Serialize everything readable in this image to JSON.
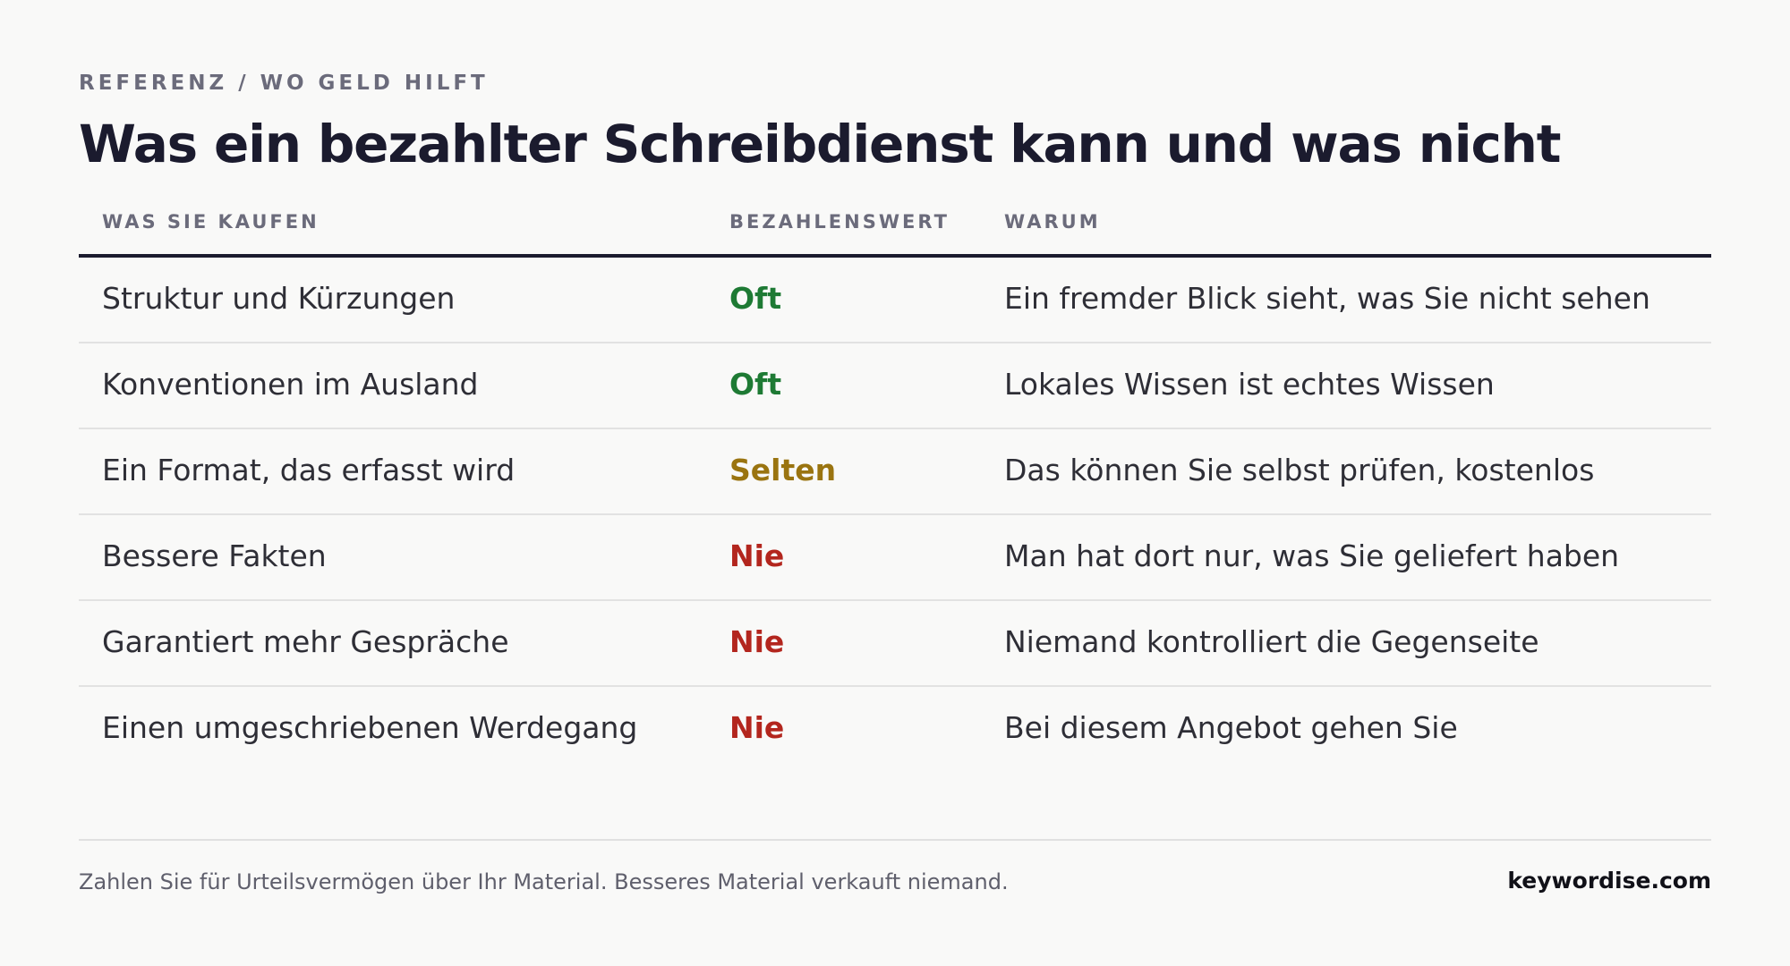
{
  "eyebrow": "REFERENZ / WO GELD HILFT",
  "title": "Was ein bezahlter Schreibdienst kann und was nicht",
  "table": {
    "headers": [
      "WAS SIE KAUFEN",
      "BEZAHLENSWERT",
      "WARUM"
    ],
    "rows": [
      {
        "item": "Struktur und Kürzungen",
        "rating": "Oft",
        "rating_color": "#1e7a34",
        "reason": "Ein fremder Blick sieht, was Sie nicht sehen"
      },
      {
        "item": "Konventionen im Ausland",
        "rating": "Oft",
        "rating_color": "#1e7a34",
        "reason": "Lokales Wissen ist echtes Wissen"
      },
      {
        "item": "Ein Format, das erfasst wird",
        "rating": "Selten",
        "rating_color": "#9a7410",
        "reason": "Das können Sie selbst prüfen, kostenlos"
      },
      {
        "item": "Bessere Fakten",
        "rating": "Nie",
        "rating_color": "#b3261e",
        "reason": "Man hat dort nur, was Sie geliefert haben"
      },
      {
        "item": "Garantiert mehr Gespräche",
        "rating": "Nie",
        "rating_color": "#b3261e",
        "reason": "Niemand kontrolliert die Gegenseite"
      },
      {
        "item": "Einen umgeschriebenen Werdegang",
        "rating": "Nie",
        "rating_color": "#b3261e",
        "reason": "Bei diesem Angebot gehen Sie"
      }
    ]
  },
  "footer": {
    "note": "Zahlen Sie für Urteilsvermögen über Ihr Material. Besseres Material verkauft niemand.",
    "brand": "keywordise.com"
  }
}
